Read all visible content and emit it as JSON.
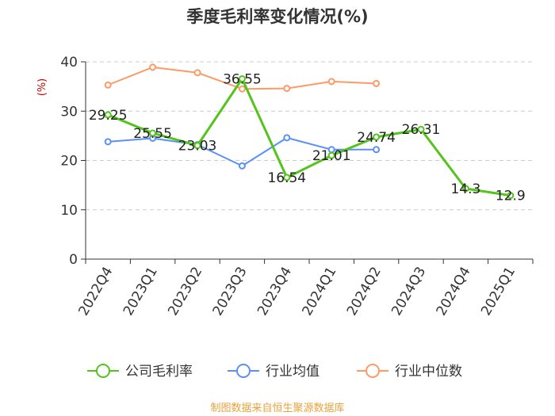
{
  "chart_data": {
    "type": "line",
    "title": "季度毛利率变化情况(%)",
    "ylabel": "(%)",
    "ylim": [
      0,
      40
    ],
    "yticks": [
      0,
      10,
      20,
      30,
      40
    ],
    "grid": true,
    "legend_position": "bottom",
    "categories": [
      "2022Q4",
      "2023Q1",
      "2023Q2",
      "2023Q3",
      "2023Q4",
      "2024Q1",
      "2024Q2",
      "2024Q3",
      "2024Q4",
      "2025Q1"
    ],
    "series": [
      {
        "name": "公司毛利率",
        "color": "#52c41a",
        "values": [
          29.25,
          25.55,
          23.03,
          36.55,
          16.54,
          21.01,
          24.74,
          26.31,
          14.3,
          12.9
        ],
        "labels": [
          "29.25",
          "25.55",
          "23.03",
          "36.55",
          "16.54",
          "21.01",
          "24.74",
          "26.31",
          "14.3",
          "12.9"
        ]
      },
      {
        "name": "行业均值",
        "color": "#5b8ff9",
        "values": [
          23.8,
          24.5,
          23.2,
          18.9,
          24.6,
          22.2,
          22.2,
          null,
          null,
          null
        ]
      },
      {
        "name": "行业中位数",
        "color": "#ff9966",
        "values": [
          35.3,
          38.9,
          37.8,
          34.5,
          34.6,
          36.0,
          35.6,
          null,
          null,
          null
        ]
      }
    ],
    "source": "制图数据来自恒生聚源数据库"
  },
  "colors": {
    "axis": "#333333",
    "grid": "#cccccc",
    "unit": "#cc0000",
    "source": "#e6a23c"
  }
}
